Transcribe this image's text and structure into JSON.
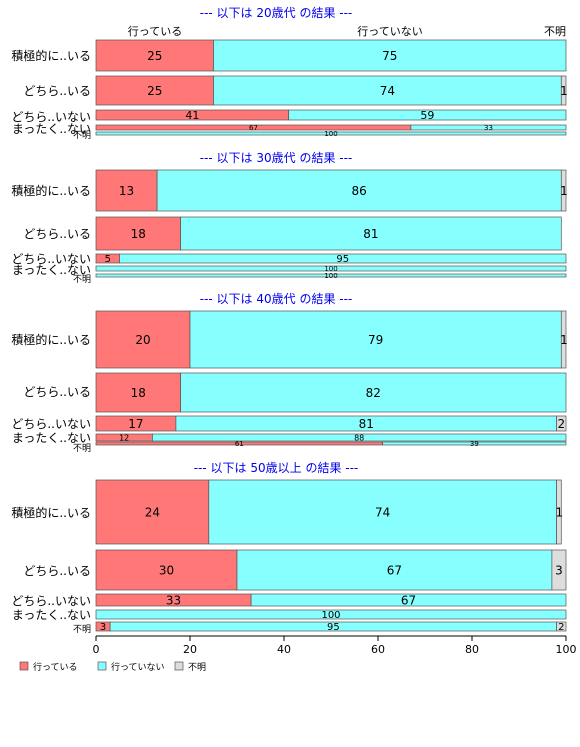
{
  "chart_data": {
    "type": "bar",
    "orientation": "horizontal",
    "stacked": true,
    "xlim": [
      0,
      100
    ],
    "x_ticks": [
      "0",
      "20",
      "40",
      "60",
      "80",
      "100"
    ],
    "column_headers": [
      "行っている",
      "行っていない",
      "不明"
    ],
    "colors": {
      "行っている": "#ff7777",
      "行っていない": "#88ffff",
      "不明": "#dddddd",
      "title": "#0000ee"
    },
    "legend": {
      "placement": "bottom-left",
      "entries": [
        "行っている",
        "行っていない",
        "不明"
      ]
    },
    "panels": [
      {
        "title": "--- 以下は 20歳代 の結果 ---",
        "rows": [
          {
            "label": "積極的に..いる",
            "values": [
              25,
              75,
              0
            ],
            "labels": [
              "25",
              "75",
              ""
            ]
          },
          {
            "label": "どちら..いる",
            "values": [
              25,
              74,
              1
            ],
            "labels": [
              "25",
              "74",
              "1"
            ]
          },
          {
            "label": "どちら..いない",
            "values": [
              41,
              59,
              0
            ],
            "labels": [
              "41",
              "59",
              ""
            ]
          },
          {
            "label": "まったく..ない",
            "values": [
              67,
              33,
              0
            ],
            "labels": [
              "67",
              "33",
              ""
            ]
          },
          {
            "label": "不明",
            "values": [
              0,
              100,
              0
            ],
            "labels": [
              "",
              "100",
              ""
            ]
          }
        ]
      },
      {
        "title": "--- 以下は 30歳代 の結果 ---",
        "rows": [
          {
            "label": "積極的に..いる",
            "values": [
              13,
              86,
              1
            ],
            "labels": [
              "13",
              "86",
              "1"
            ]
          },
          {
            "label": "どちら..いる",
            "values": [
              18,
              81,
              0
            ],
            "labels": [
              "18",
              "81",
              ""
            ]
          },
          {
            "label": "どちら..いない",
            "values": [
              5,
              95,
              0
            ],
            "labels": [
              "5",
              "95",
              ""
            ]
          },
          {
            "label": "まったく..ない",
            "values": [
              0,
              100,
              0
            ],
            "labels": [
              "",
              "100",
              ""
            ]
          },
          {
            "label": "不明",
            "values": [
              0,
              100,
              0
            ],
            "labels": [
              "",
              "100",
              ""
            ]
          }
        ]
      },
      {
        "title": "--- 以下は 40歳代 の結果 ---",
        "rows": [
          {
            "label": "積極的に..いる",
            "values": [
              20,
              79,
              1
            ],
            "labels": [
              "20",
              "79",
              "1"
            ]
          },
          {
            "label": "どちら..いる",
            "values": [
              18,
              82,
              0
            ],
            "labels": [
              "18",
              "82",
              ""
            ]
          },
          {
            "label": "どちら..いない",
            "values": [
              17,
              81,
              2
            ],
            "labels": [
              "17",
              "81",
              "2"
            ]
          },
          {
            "label": "まったく..ない",
            "values": [
              12,
              88,
              0
            ],
            "labels": [
              "12",
              "88",
              ""
            ]
          },
          {
            "label": "不明",
            "values": [
              61,
              39,
              0
            ],
            "labels": [
              "61",
              "39",
              ""
            ]
          }
        ]
      },
      {
        "title": "--- 以下は 50歳以上 の結果 ---",
        "rows": [
          {
            "label": "積極的に..いる",
            "values": [
              24,
              74,
              1
            ],
            "labels": [
              "24",
              "74",
              "1"
            ]
          },
          {
            "label": "どちら..いる",
            "values": [
              30,
              67,
              3
            ],
            "labels": [
              "30",
              "67",
              "3"
            ]
          },
          {
            "label": "どちら..いない",
            "values": [
              33,
              67,
              0
            ],
            "labels": [
              "33",
              "67",
              ""
            ]
          },
          {
            "label": "まったく..ない",
            "values": [
              0,
              100,
              0
            ],
            "labels": [
              "",
              "100",
              ""
            ]
          },
          {
            "label": "不明",
            "values": [
              3,
              95,
              2
            ],
            "labels": [
              "3",
              "95",
              "2"
            ]
          }
        ]
      }
    ]
  }
}
